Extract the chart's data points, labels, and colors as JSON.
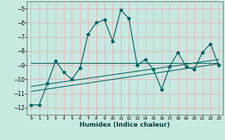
{
  "xlabel": "Humidex (Indice chaleur)",
  "ylabel": "",
  "xlim": [
    -0.5,
    23.5
  ],
  "ylim": [
    -12.5,
    -4.5
  ],
  "yticks": [
    -12,
    -11,
    -10,
    -9,
    -8,
    -7,
    -6,
    -5
  ],
  "xticks": [
    0,
    1,
    2,
    3,
    4,
    5,
    6,
    7,
    8,
    9,
    10,
    11,
    12,
    13,
    14,
    15,
    16,
    17,
    18,
    19,
    20,
    21,
    22,
    23
  ],
  "bg_color": "#c8e8e2",
  "grid_color": "#e8b0b0",
  "line_color": "#006060",
  "main_x": [
    0,
    1,
    2,
    3,
    4,
    5,
    6,
    7,
    8,
    9,
    10,
    11,
    12,
    13,
    14,
    15,
    16,
    17,
    18,
    19,
    20,
    21,
    22,
    23
  ],
  "main_y": [
    -11.8,
    -11.8,
    -10.3,
    -8.7,
    -9.5,
    -10.0,
    -9.2,
    -6.8,
    -6.0,
    -5.8,
    -7.3,
    -5.1,
    -5.7,
    -9.0,
    -8.6,
    -9.3,
    -10.7,
    -9.1,
    -8.1,
    -9.1,
    -9.3,
    -8.1,
    -7.5,
    -9.0
  ],
  "line1_x": [
    0,
    23
  ],
  "line1_y": [
    -8.85,
    -8.85
  ],
  "line2_x": [
    0,
    23
  ],
  "line2_y": [
    -10.5,
    -8.6
  ],
  "line3_x": [
    0,
    23
  ],
  "line3_y": [
    -10.85,
    -8.9
  ]
}
